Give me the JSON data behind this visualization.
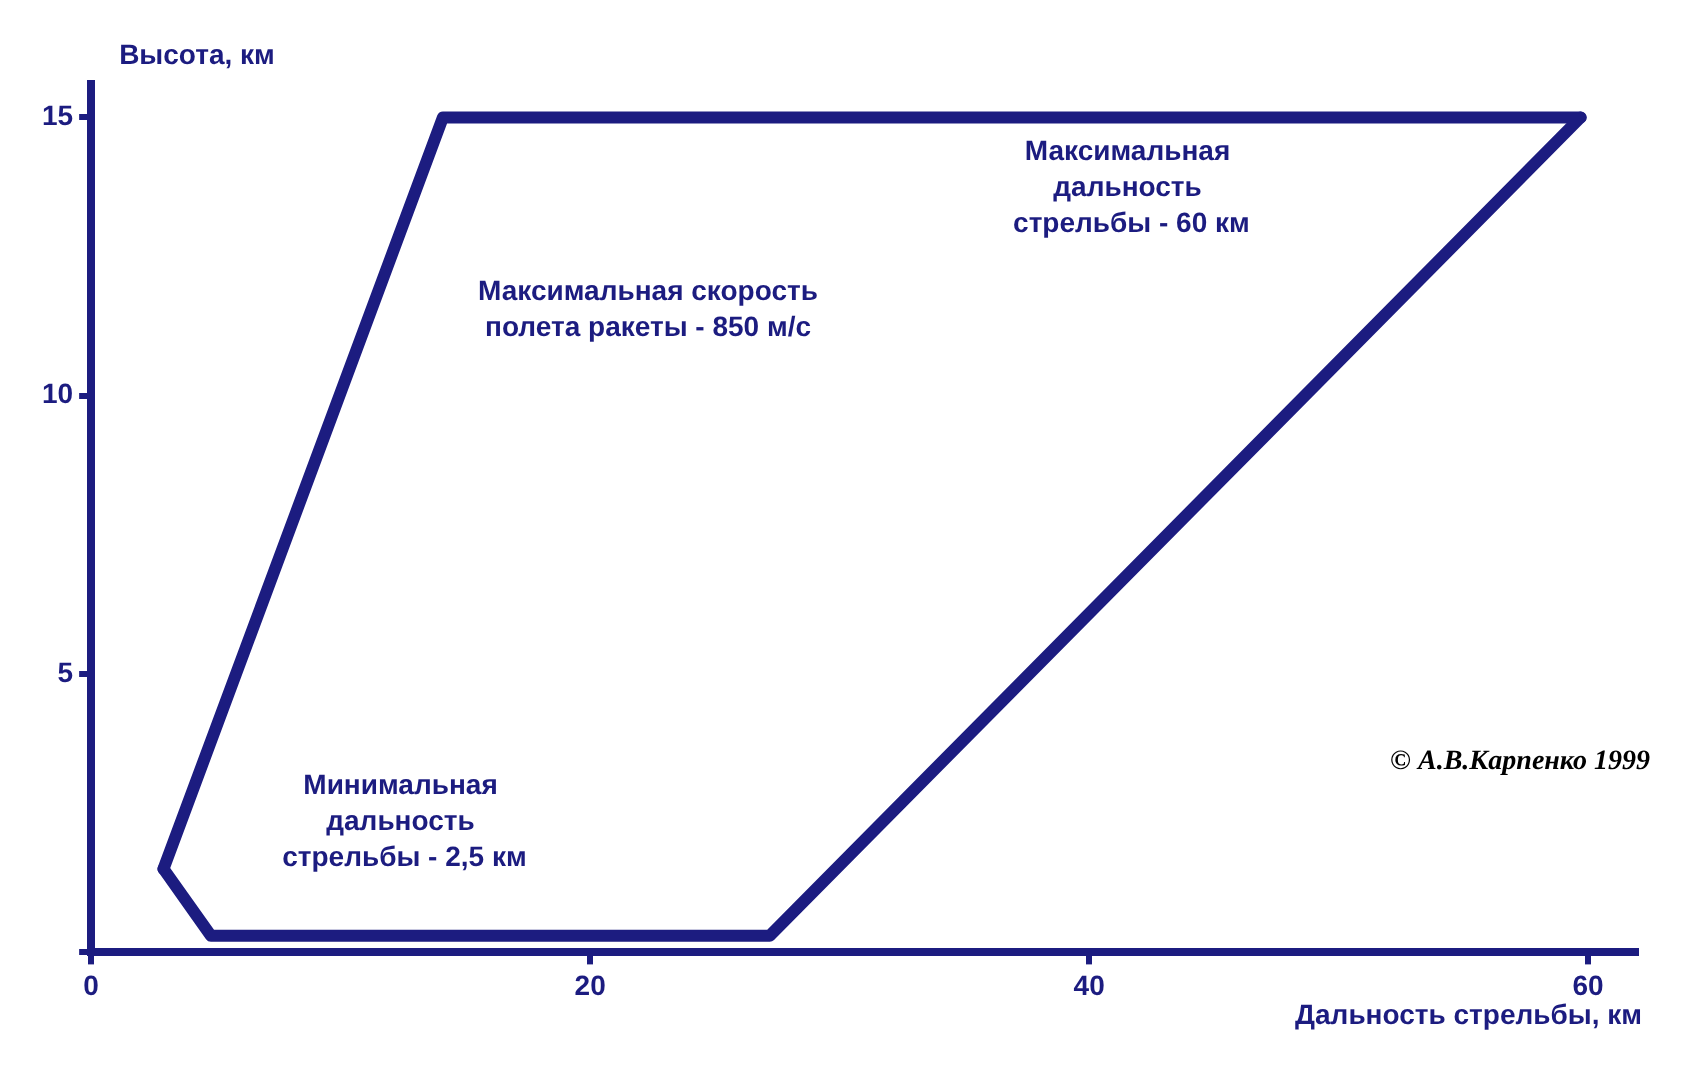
{
  "chart_data": {
    "type": "line",
    "xlabel": "Дальность стрельбы, км",
    "ylabel": "Высота, км",
    "series": [
      {
        "color": "#1c1c80",
        "x": [
          2.9,
          14.1,
          59.7
        ],
        "values": [
          1.5,
          15,
          15
        ]
      },
      {
        "color": "#1c1c80",
        "x": [
          2.9,
          4.8,
          27.2,
          59.7
        ],
        "values": [
          1.5,
          0.3,
          0.3,
          15
        ]
      }
    ],
    "xlim": [
      0,
      62
    ],
    "xticks": [
      0,
      20,
      40,
      60
    ],
    "ylim": [
      0,
      15.6
    ],
    "yticks": [
      {
        "value": 0,
        "label": null
      },
      5,
      10,
      15
    ],
    "grid": false,
    "legend": false,
    "marker": "none",
    "line_style": "solid",
    "annotations": [
      "Максимальная скорость\nполета ракеты - 850 м/с",
      "Максимальная\nдальность\n стрельбы - 60 км",
      "Минимальная\nдальность\n стрельбы - 2,5 км",
      "© А.В.Карпенко 1999"
    ]
  }
}
